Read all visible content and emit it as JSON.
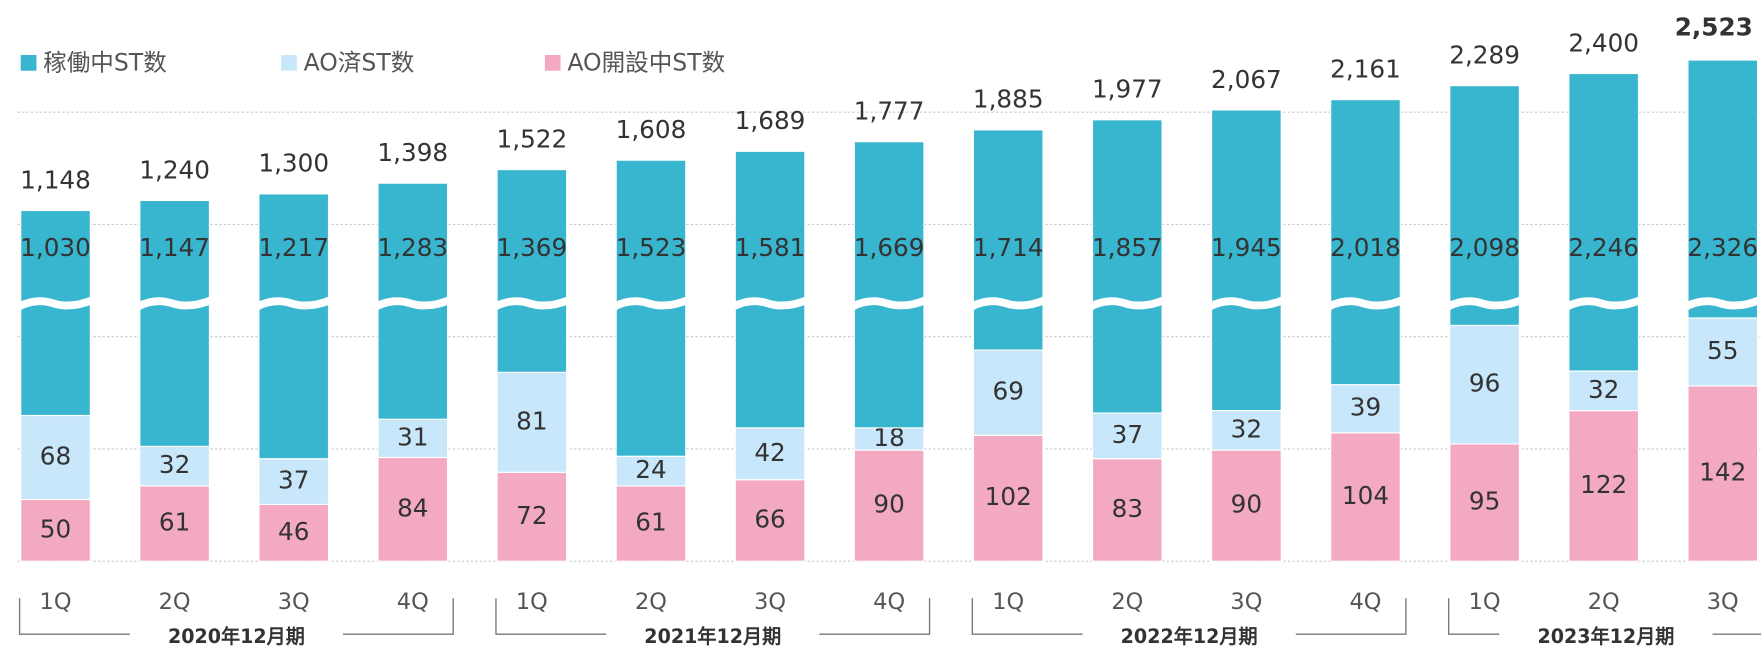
{
  "chart_data": {
    "type": "stacked-bar",
    "groups": [
      {
        "name": "2020年12月期",
        "categories": [
          "1Q",
          "2Q",
          "3Q",
          "4Q"
        ]
      },
      {
        "name": "2021年12月期",
        "categories": [
          "1Q",
          "2Q",
          "3Q",
          "4Q"
        ]
      },
      {
        "name": "2022年12月期",
        "categories": [
          "1Q",
          "2Q",
          "3Q",
          "4Q"
        ]
      },
      {
        "name": "2023年12月期",
        "categories": [
          "1Q",
          "2Q",
          "3Q"
        ]
      }
    ],
    "series": [
      {
        "name": "AO開設中ST数",
        "color": "#f4a9c2",
        "values": [
          50,
          61,
          46,
          84,
          72,
          61,
          66,
          90,
          102,
          83,
          90,
          104,
          95,
          122,
          142
        ]
      },
      {
        "name": "AO済ST数",
        "color": "#c8e7fb",
        "values": [
          68,
          32,
          37,
          31,
          81,
          24,
          42,
          18,
          69,
          37,
          32,
          39,
          96,
          32,
          55
        ]
      },
      {
        "name": "稼働中ST数",
        "color": "#38b6cf",
        "values": [
          1030,
          1147,
          1217,
          1283,
          1369,
          1523,
          1581,
          1669,
          1714,
          1857,
          1945,
          2018,
          2098,
          2246,
          2326
        ],
        "value_labels": [
          "1,030",
          "1,147",
          "1,217",
          "1,283",
          "1,369",
          "1,523",
          "1,581",
          "1,669",
          "1,714",
          "1,857",
          "1,945",
          "2,018",
          "2,098",
          "2,246",
          "2,326"
        ]
      }
    ],
    "totals": {
      "values": [
        1148,
        1240,
        1300,
        1398,
        1522,
        1608,
        1689,
        1777,
        1885,
        1977,
        2067,
        2161,
        2289,
        2400,
        2523
      ],
      "value_labels": [
        "1,148",
        "1,240",
        "1,300",
        "1,398",
        "1,522",
        "1,608",
        "1,689",
        "1,777",
        "1,885",
        "1,977",
        "2,067",
        "2,161",
        "2,289",
        "2,400",
        "2,523"
      ]
    }
  }
}
